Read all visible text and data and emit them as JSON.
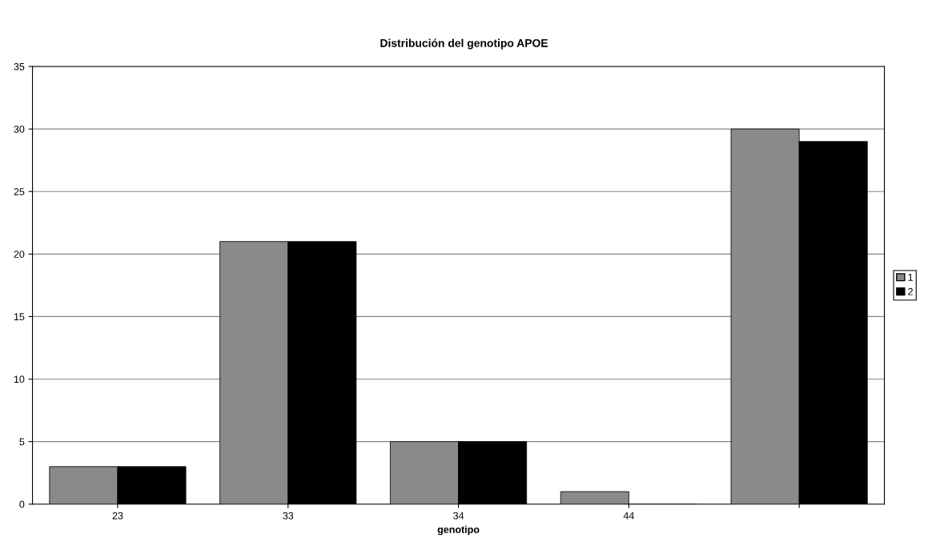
{
  "chart_data": {
    "type": "bar",
    "title": "Distribución del genotipo APOE",
    "xlabel": "genotipo",
    "categories": [
      "23",
      "33",
      "34",
      "44",
      null
    ],
    "series": [
      {
        "name": "1",
        "color": "#8a8a8a",
        "values": [
          3,
          21,
          5,
          1,
          30
        ]
      },
      {
        "name": "2",
        "color": "#000000",
        "values": [
          3,
          21,
          5,
          0,
          29
        ]
      }
    ],
    "ylim": [
      0,
      35
    ],
    "yticks": [
      0,
      5,
      10,
      15,
      20,
      25,
      30,
      35
    ],
    "grid": "y",
    "legend": "right"
  }
}
